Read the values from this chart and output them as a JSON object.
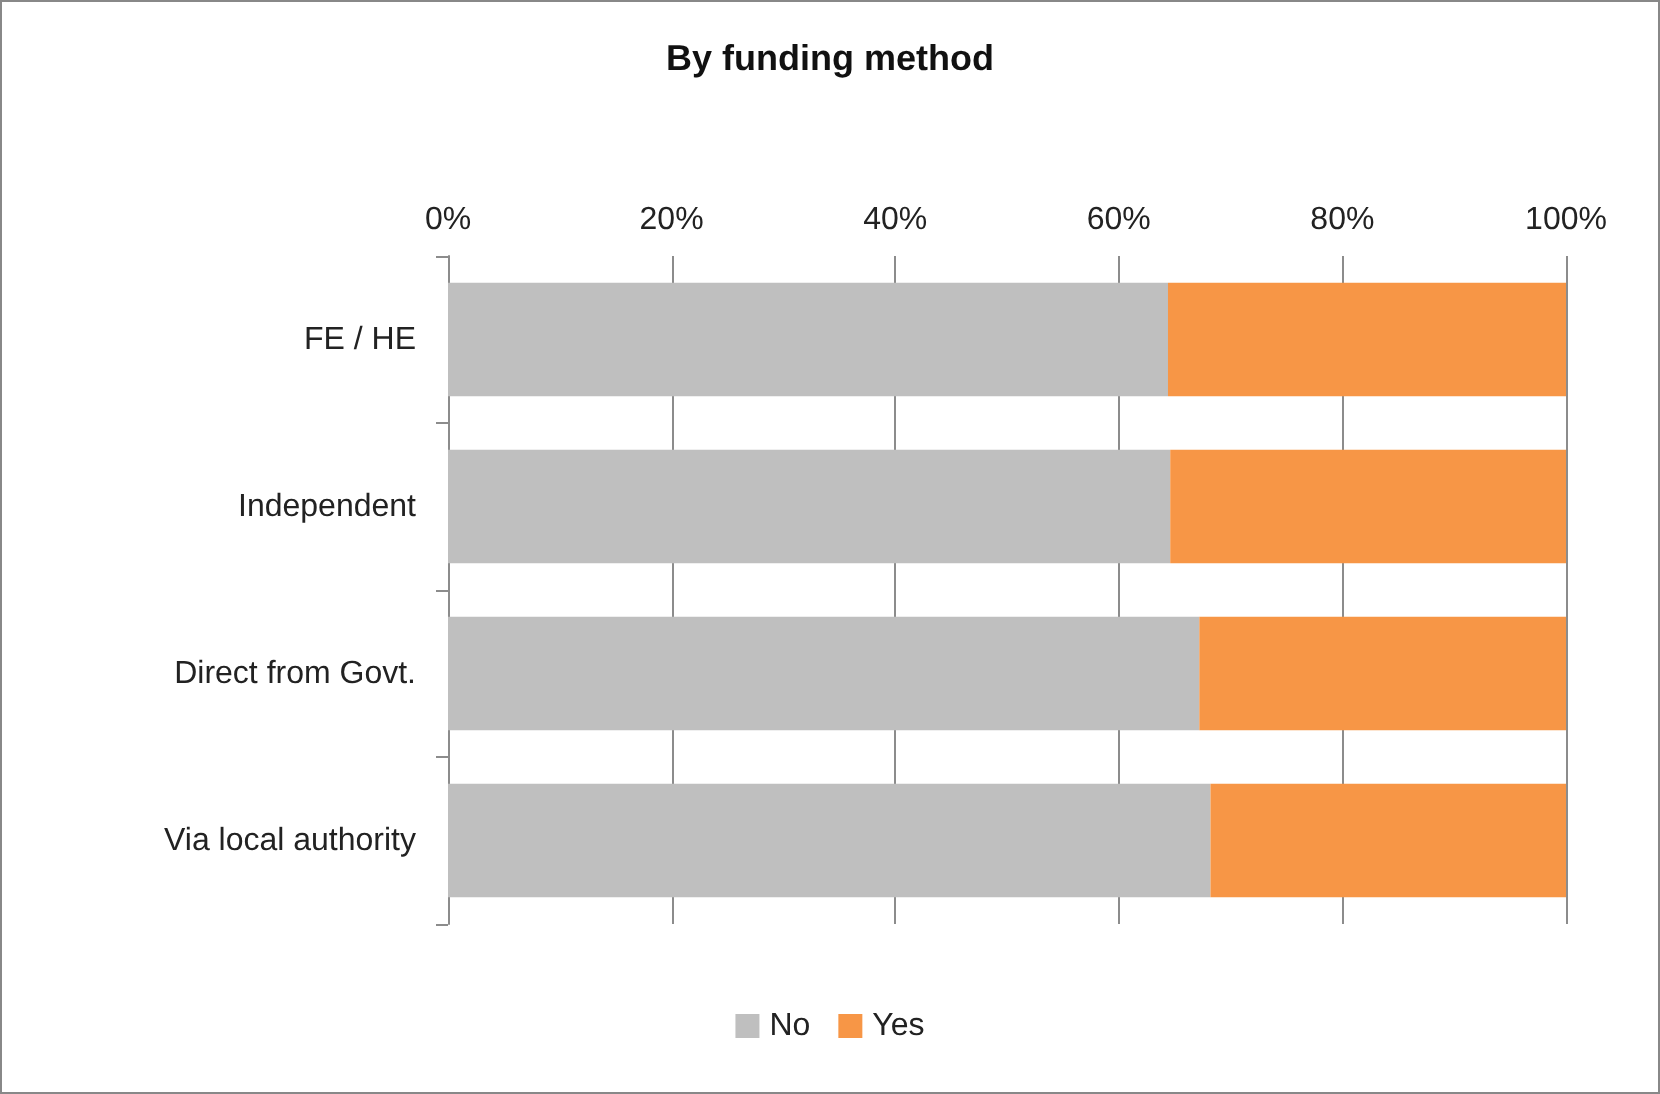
{
  "chart_data": {
    "type": "bar",
    "title": "By funding method",
    "orientation": "horizontal",
    "stacked": true,
    "categories": [
      "FE / HE",
      "Independent",
      "Direct from Govt.",
      "Via local authority"
    ],
    "series": [
      {
        "name": "No",
        "color": "#bfbfbf",
        "values": [
          64.4,
          64.6,
          67.2,
          68.2
        ]
      },
      {
        "name": "Yes",
        "color": "#f79646",
        "values": [
          35.6,
          35.4,
          32.8,
          31.8
        ]
      }
    ],
    "xlim": [
      0,
      100
    ],
    "xticks": [
      {
        "value": 0,
        "label": "0%"
      },
      {
        "value": 20,
        "label": "20%"
      },
      {
        "value": 40,
        "label": "40%"
      },
      {
        "value": 60,
        "label": "60%"
      },
      {
        "value": 80,
        "label": "80%"
      },
      {
        "value": 100,
        "label": "100%"
      }
    ],
    "grid": "x",
    "legend": "bottom"
  }
}
